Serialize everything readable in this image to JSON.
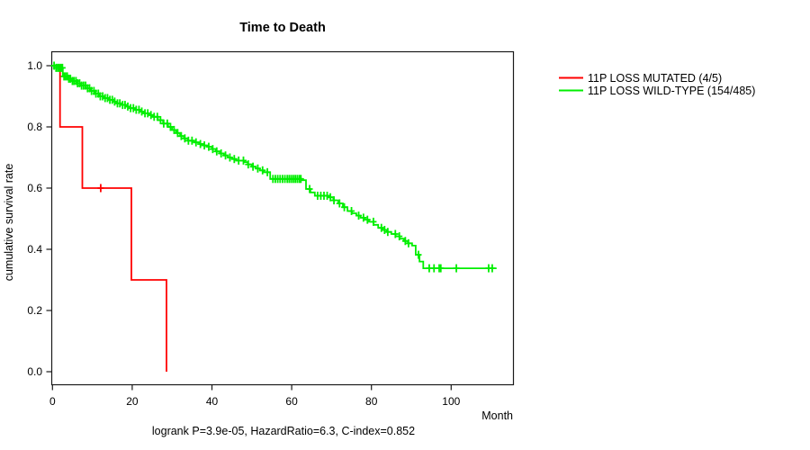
{
  "page": {
    "background": "#ffffff",
    "axis_color": "#000000"
  },
  "chart_data": {
    "type": "line",
    "subtype": "kaplan-meier-step",
    "title": "Time to Death",
    "xlabel": "Month",
    "ylabel": "cumulative survival rate",
    "footer": "logrank P=3.9e-05, HazardRatio=6.3, C-index=0.852",
    "xlim": [
      0,
      119
    ],
    "ylim": [
      0,
      1
    ],
    "x_ticks": [
      0,
      20,
      40,
      60,
      80,
      100
    ],
    "y_ticks": [
      "0.0",
      "0.2",
      "0.4",
      "0.6",
      "0.8",
      "1.0"
    ],
    "grid": false,
    "legend_position": "right-outside",
    "series": [
      {
        "name": "mutated",
        "label": "11P LOSS MUTATED (4/5)",
        "color": "#ff0000",
        "exact": true,
        "anchors": [
          [
            0,
            1.0
          ],
          [
            1.9,
            0.8
          ],
          [
            7.5,
            0.6
          ],
          [
            19.8,
            0.3
          ],
          [
            28.6,
            0.0
          ]
        ],
        "censor_months": [
          12.1
        ]
      },
      {
        "name": "wildtype",
        "label": "11P LOSS WILD-TYPE (154/485)",
        "color": "#00ee00",
        "exact": false,
        "anchors": [
          [
            0,
            1.0
          ],
          [
            0.9,
            0.993
          ],
          [
            2.6,
            0.965
          ],
          [
            7.2,
            0.935
          ],
          [
            11.7,
            0.9
          ],
          [
            16.2,
            0.877
          ],
          [
            20.7,
            0.856
          ],
          [
            25.2,
            0.833
          ],
          [
            29,
            0.8
          ],
          [
            32,
            0.77
          ],
          [
            34,
            0.755
          ],
          [
            37,
            0.744
          ],
          [
            39,
            0.735
          ],
          [
            41,
            0.72
          ],
          [
            44,
            0.7
          ],
          [
            46,
            0.69
          ],
          [
            48,
            0.685
          ],
          [
            50,
            0.67
          ],
          [
            53,
            0.652
          ],
          [
            54.6,
            0.63
          ],
          [
            62.5,
            0.626
          ],
          [
            63.6,
            0.597
          ],
          [
            65.8,
            0.575
          ],
          [
            69.2,
            0.57
          ],
          [
            71.7,
            0.55
          ],
          [
            74,
            0.525
          ],
          [
            76.2,
            0.51
          ],
          [
            79.4,
            0.49
          ],
          [
            81.7,
            0.47
          ],
          [
            85,
            0.45
          ],
          [
            90.2,
            0.412
          ],
          [
            91.1,
            0.382
          ],
          [
            93,
            0.338
          ],
          [
            111.4,
            0.338
          ]
        ],
        "censor_months": [
          0.4,
          0.9,
          1.3,
          1.7,
          2.1,
          2.5,
          2.9,
          3.3,
          3.7,
          4.1,
          4.5,
          5,
          5.4,
          5.9,
          6.3,
          6.8,
          7.3,
          7.8,
          8.3,
          8.8,
          9.3,
          9.8,
          10.4,
          10.9,
          11.5,
          12,
          12.6,
          13.2,
          13.8,
          14.4,
          15,
          15.6,
          16.3,
          16.9,
          17.6,
          18.2,
          18.9,
          19.6,
          20.3,
          21,
          21.7,
          22.4,
          23.2,
          23.9,
          24.7,
          25.5,
          26.3,
          27.1,
          27.9,
          28.8,
          29.6,
          30.5,
          31.4,
          32.3,
          33.2,
          34.1,
          35,
          36,
          37.1,
          38.1,
          39.2,
          40.2,
          41.2,
          42.3,
          43.4,
          44.5,
          45.6,
          46.7,
          47.9,
          49.1,
          50.3,
          51.5,
          52.7,
          53.9,
          55.3,
          55.9,
          56.5,
          57.1,
          57.7,
          58.3,
          58.9,
          59.4,
          59.9,
          60.4,
          60.9,
          61.4,
          61.9,
          62.3,
          64.5,
          66.5,
          67.3,
          68.1,
          68.9,
          69.7,
          70.6,
          72,
          73.2,
          75,
          76.8,
          78,
          79,
          80.5,
          82.5,
          83.3,
          84.1,
          86,
          87,
          88.5,
          89.3,
          91.8,
          94.5,
          95.7,
          97,
          97.4,
          101.3,
          109.4,
          110.3
        ]
      }
    ]
  }
}
